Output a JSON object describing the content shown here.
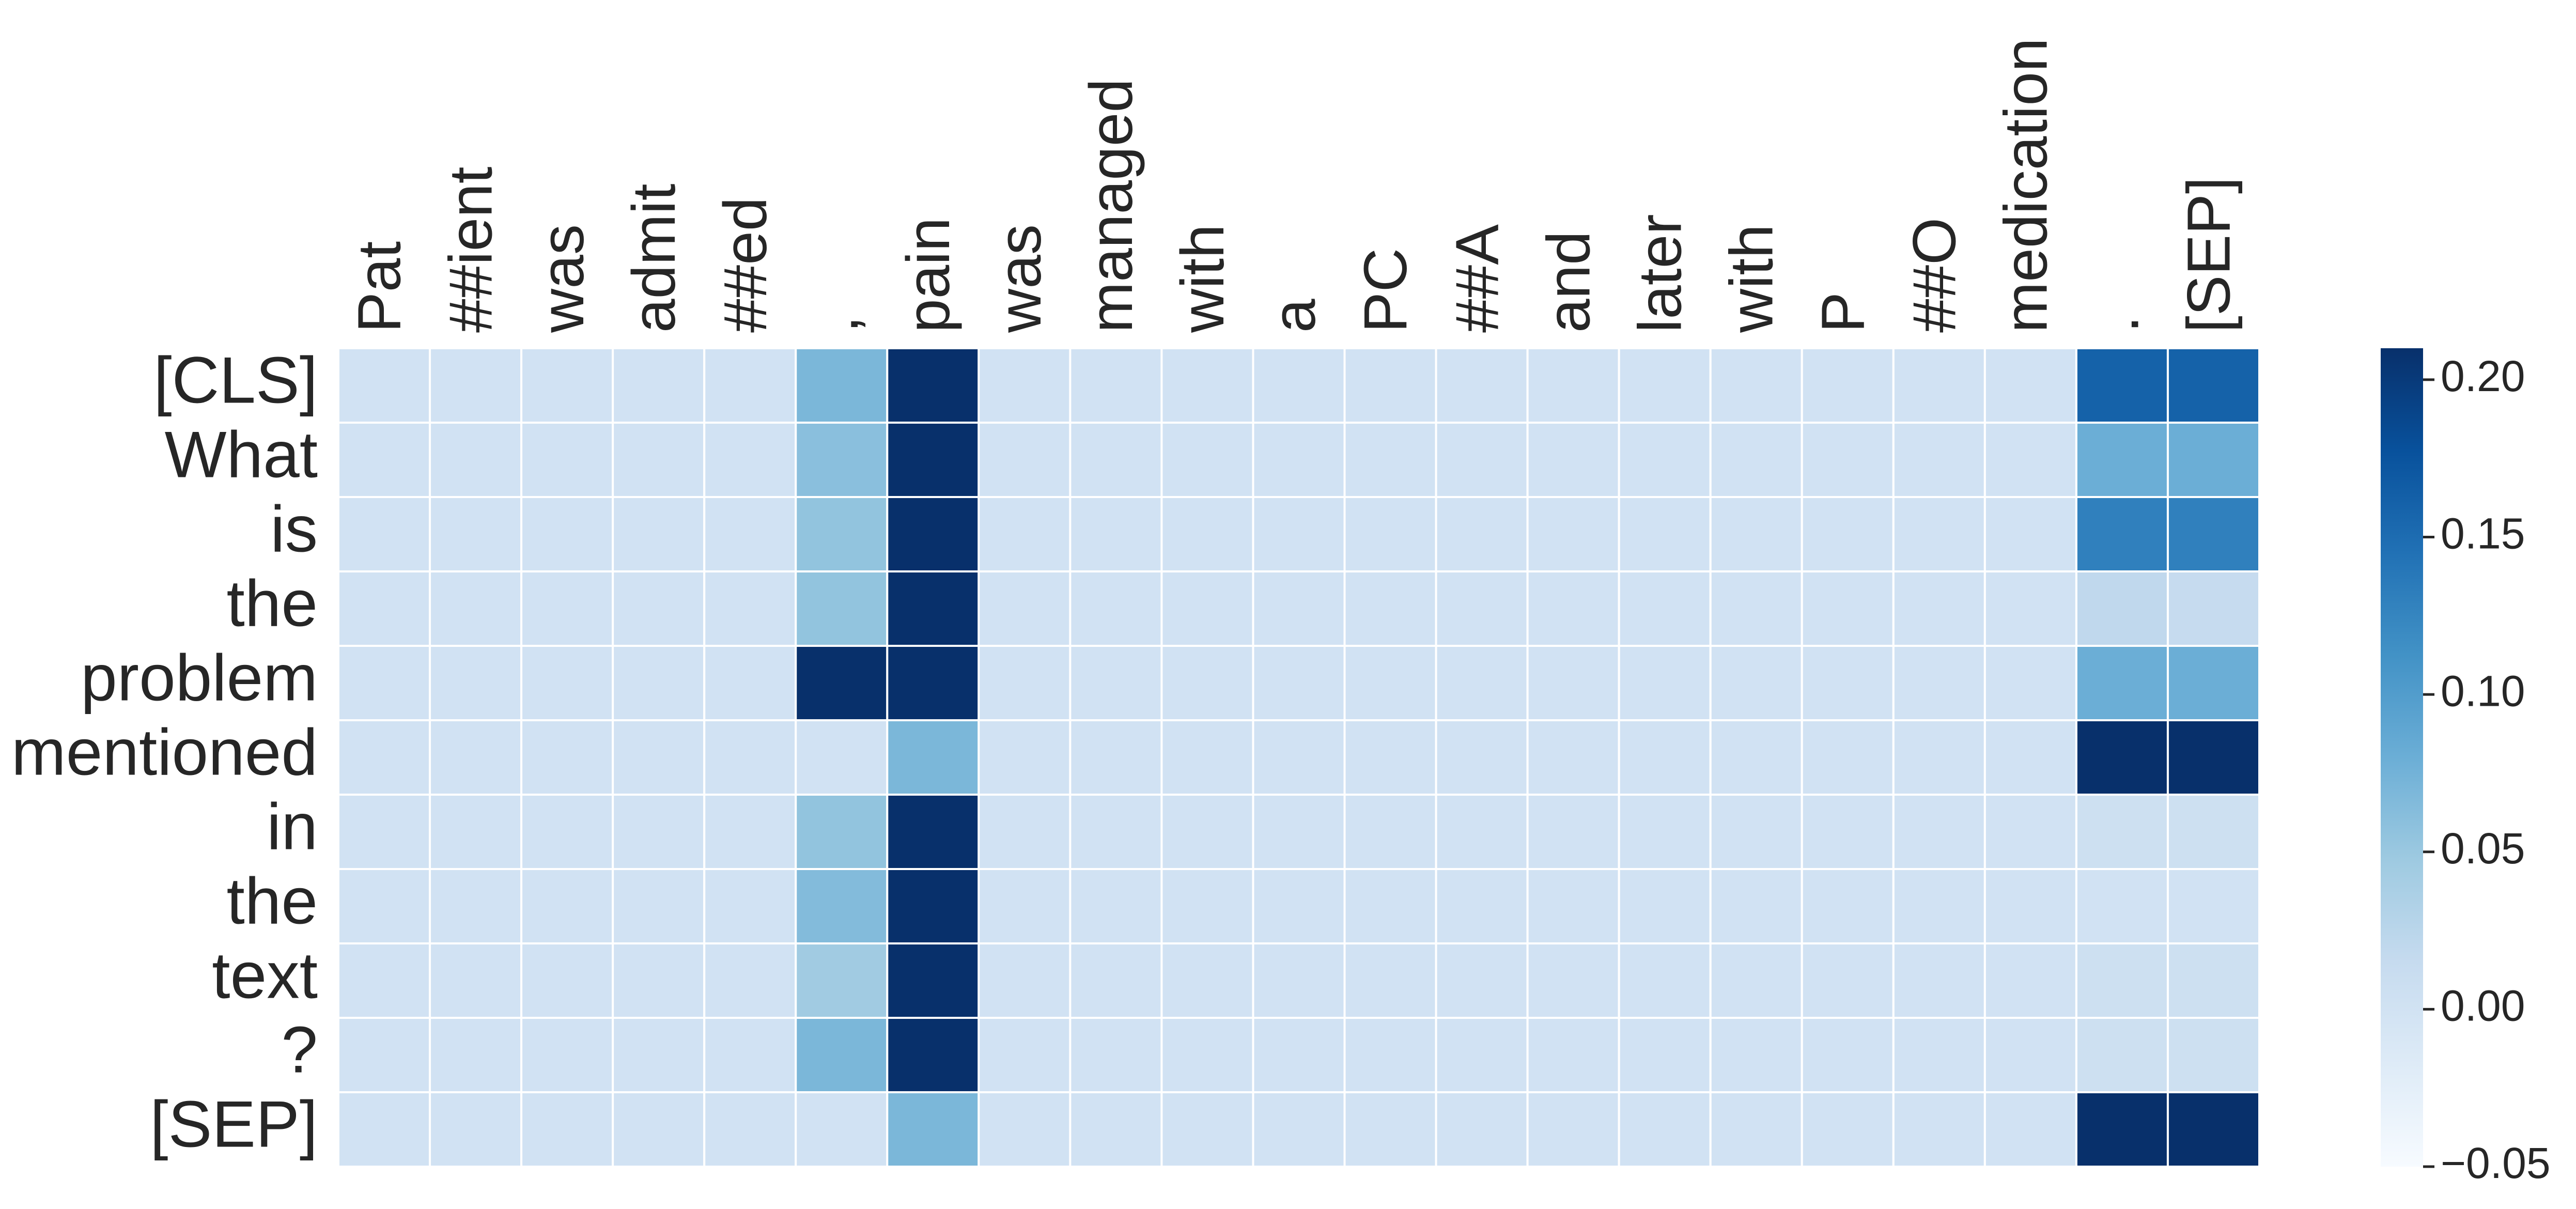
{
  "chart_data": {
    "type": "heatmap",
    "x_categories": [
      "Pat",
      "##ient",
      "was",
      "admit",
      "##ed",
      ",",
      "pain",
      "was",
      "managed",
      "with",
      "a",
      "PC",
      "##A",
      "and",
      "later",
      "with",
      "P",
      "##O",
      "medication",
      ".",
      "[SEP]"
    ],
    "y_categories": [
      "[CLS]",
      "What",
      "is",
      "the",
      "problem",
      "mentioned",
      "in",
      "the",
      "text",
      "?",
      "[SEP]"
    ],
    "values": [
      [
        0,
        0,
        0,
        0,
        0,
        0.07,
        0.21,
        0,
        0,
        0,
        0,
        0,
        0,
        0,
        0,
        0,
        0,
        0,
        0,
        0.16,
        0.16
      ],
      [
        0,
        0,
        0,
        0,
        0,
        0.06,
        0.21,
        0,
        0,
        0,
        0,
        0,
        0,
        0,
        0,
        0,
        0,
        0,
        0,
        0.08,
        0.08
      ],
      [
        0,
        0,
        0,
        0,
        0,
        0.055,
        0.21,
        0,
        0,
        0,
        0,
        0,
        0,
        0,
        0,
        0,
        0,
        0,
        0,
        0.13,
        0.13
      ],
      [
        0,
        0,
        0,
        0,
        0,
        0.055,
        0.21,
        0,
        0,
        0,
        0,
        0,
        0,
        0,
        0,
        0,
        0,
        0,
        0,
        0.02,
        0.015
      ],
      [
        0,
        0,
        0,
        0,
        0,
        0.21,
        0.21,
        0,
        0,
        0,
        0,
        0,
        0,
        0,
        0,
        0,
        0,
        0,
        0,
        0.08,
        0.08
      ],
      [
        0,
        0,
        0,
        0,
        0,
        0,
        0.07,
        0,
        0,
        0,
        0,
        0,
        0,
        0,
        0,
        0,
        0,
        0,
        0,
        0.21,
        0.21
      ],
      [
        0,
        0,
        0,
        0,
        0,
        0.055,
        0.21,
        0,
        0,
        0,
        0,
        0,
        0,
        0,
        0,
        0,
        0,
        0,
        0,
        0.005,
        0.005
      ],
      [
        0,
        0,
        0,
        0,
        0,
        0.065,
        0.21,
        0,
        0,
        0,
        0,
        0,
        0,
        0,
        0,
        0,
        0,
        0,
        0,
        0,
        0
      ],
      [
        0,
        0,
        0,
        0,
        0,
        0.045,
        0.21,
        0,
        0,
        0,
        0,
        0,
        0,
        0,
        0,
        0,
        0,
        0,
        0,
        0.005,
        0.005
      ],
      [
        0,
        0,
        0,
        0,
        0,
        0.07,
        0.21,
        0,
        0,
        0,
        0,
        0,
        0,
        0,
        0,
        0,
        0,
        0,
        0,
        0.005,
        0.005
      ],
      [
        0,
        0,
        0,
        0,
        0,
        0,
        0.07,
        0,
        0,
        0,
        0,
        0,
        0,
        0,
        0,
        0,
        0,
        0,
        0,
        0.21,
        0.21
      ]
    ],
    "colormap": "Blues",
    "zlim": [
      -0.05,
      0.21
    ],
    "zticks": [
      {
        "value": -0.05,
        "label": "−0.05"
      },
      {
        "value": 0,
        "label": "0.00"
      },
      {
        "value": 0.05,
        "label": "0.05"
      },
      {
        "value": 0.1,
        "label": "0.10"
      },
      {
        "value": 0.15,
        "label": "0.15"
      },
      {
        "value": 0.2,
        "label": "0.20"
      }
    ]
  }
}
